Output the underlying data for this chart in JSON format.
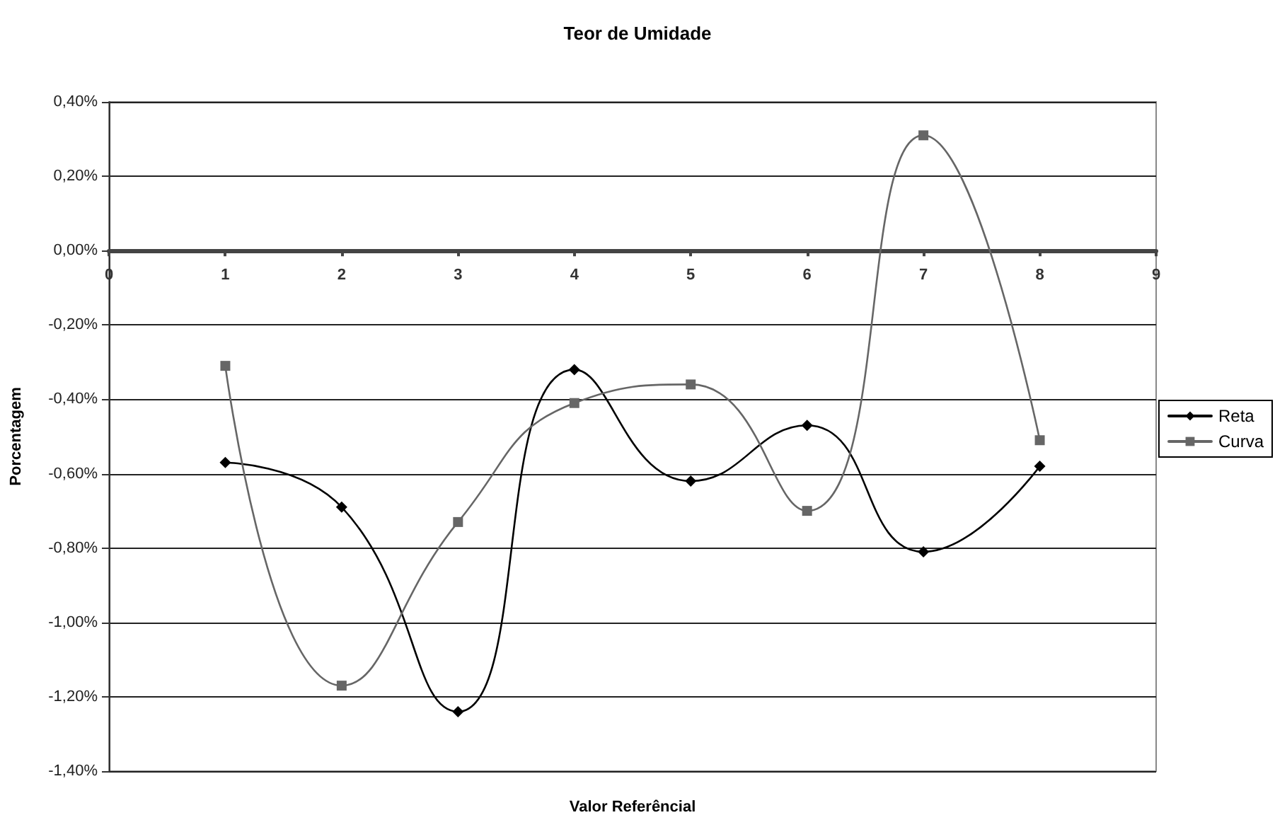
{
  "chart_data": {
    "type": "line",
    "title": "Teor de Umidade",
    "xlabel": "Valor Referêncial",
    "ylabel": "Porcentagem",
    "x": [
      1,
      2,
      3,
      4,
      5,
      6,
      7,
      8
    ],
    "series": [
      {
        "name": "Reta",
        "color": "#000000",
        "marker": "diamond",
        "values": [
          -0.57,
          -0.69,
          -1.24,
          -0.32,
          -0.62,
          -0.47,
          -0.81,
          -0.58
        ]
      },
      {
        "name": "Curva",
        "color": "#666666",
        "marker": "square",
        "values": [
          -0.31,
          -1.17,
          -0.73,
          -0.41,
          -0.36,
          -0.7,
          0.31,
          -0.51
        ]
      }
    ],
    "xlim": [
      0,
      9
    ],
    "xticks": [
      0,
      1,
      2,
      3,
      4,
      5,
      6,
      7,
      8,
      9
    ],
    "ylim": [
      -1.4,
      0.4
    ],
    "yticks": [
      {
        "value": -1.4,
        "label": "-1,40%"
      },
      {
        "value": -1.2,
        "label": "-1,20%"
      },
      {
        "value": -1.0,
        "label": "-1,00%"
      },
      {
        "value": -0.8,
        "label": "-0,80%"
      },
      {
        "value": -0.6,
        "label": "-0,60%"
      },
      {
        "value": -0.4,
        "label": "-0,40%"
      },
      {
        "value": -0.2,
        "label": "-0,20%"
      },
      {
        "value": 0,
        "label": "0,00%"
      },
      {
        "value": 0.2,
        "label": "0,20%"
      },
      {
        "value": 0.4,
        "label": "0,40%"
      }
    ],
    "grid": "y",
    "legend": "right",
    "line_style": "solid"
  }
}
